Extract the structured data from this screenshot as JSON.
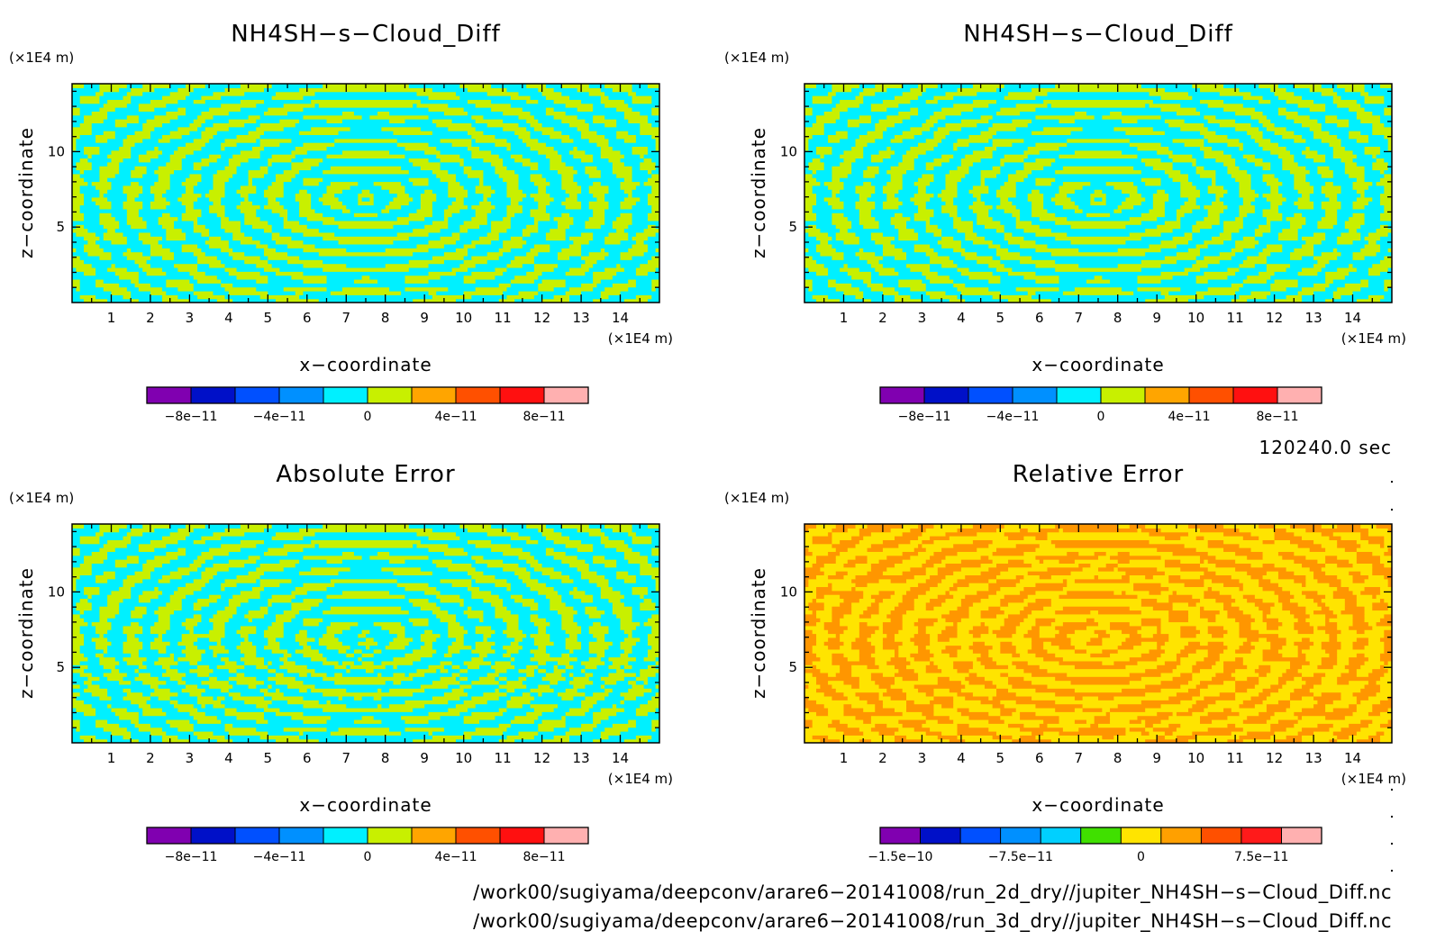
{
  "palette": {
    "cyan": "#00f0ff",
    "yellow_green": "#c8f000",
    "yellow": "#ffe400",
    "orange": "#ff9600"
  },
  "panels": [
    {
      "title": "NH4SH−s−Cloud_Diff",
      "xlabel": "x−coordinate",
      "ylabel": "z−coordinate",
      "x_unit": "(×1E4 m)",
      "y_unit": "(×1E4 m)",
      "pattern": "diff",
      "colors": [
        "#00f0ff",
        "#c8f000"
      ]
    },
    {
      "title": "NH4SH−s−Cloud_Diff",
      "xlabel": "x−coordinate",
      "ylabel": "z−coordinate",
      "x_unit": "(×1E4 m)",
      "y_unit": "(×1E4 m)",
      "pattern": "diff",
      "colors": [
        "#00f0ff",
        "#c8f000"
      ]
    },
    {
      "title": "Absolute Error",
      "xlabel": "x−coordinate",
      "ylabel": "z−coordinate",
      "x_unit": "(×1E4 m)",
      "y_unit": "(×1E4 m)",
      "pattern": "abs",
      "colors": [
        "#00f0ff",
        "#c8f000"
      ]
    },
    {
      "title": "Relative Error",
      "xlabel": "x−coordinate",
      "ylabel": "z−coordinate",
      "x_unit": "(×1E4 m)",
      "y_unit": "(×1E4 m)",
      "pattern": "rel",
      "colors": [
        "#ffe400",
        "#ff9600"
      ]
    }
  ],
  "time_label": "120240.0 sec",
  "footer_lines": [
    "/work00/sugiyama/deepconv/arare6−20141008/run_2d_dry//jupiter_NH4SH−s−Cloud_Diff.nc",
    "/work00/sugiyama/deepconv/arare6−20141008/run_3d_dry//jupiter_NH4SH−s−Cloud_Diff.nc"
  ],
  "chart_data": [
    {
      "type": "heatmap",
      "title": "NH4SH−s−Cloud_Diff",
      "xlabel": "x−coordinate",
      "ylabel": "z−coordinate",
      "x_unit": "(×1E4 m)",
      "y_unit": "(×1E4 m)",
      "xlim": [
        0,
        15
      ],
      "ylim": [
        0,
        14.5
      ],
      "x_ticks": [
        "1",
        "2",
        "3",
        "4",
        "5",
        "6",
        "7",
        "8",
        "9",
        "10",
        "11",
        "12",
        "13",
        "14"
      ],
      "y_ticks": [
        "5",
        "10"
      ],
      "levels_shown": [
        "0",
        "1e-11"
      ],
      "colorbar": {
        "colors": [
          "#8000b0",
          "#0010c8",
          "#0050ff",
          "#0090ff",
          "#00f0ff",
          "#c8f000",
          "#ffa500",
          "#ff5000",
          "#ff1010",
          "#ffb0b0"
        ],
        "labels": [
          "−8e−11",
          "−4e−11",
          "0",
          "4e−11",
          "8e−11"
        ],
        "label_pos": [
          1,
          3,
          5,
          7,
          9
        ]
      }
    },
    {
      "type": "heatmap",
      "title": "NH4SH−s−Cloud_Diff",
      "xlabel": "x−coordinate",
      "ylabel": "z−coordinate",
      "x_unit": "(×1E4 m)",
      "y_unit": "(×1E4 m)",
      "xlim": [
        0,
        15
      ],
      "ylim": [
        0,
        14.5
      ],
      "x_ticks": [
        "1",
        "2",
        "3",
        "4",
        "5",
        "6",
        "7",
        "8",
        "9",
        "10",
        "11",
        "12",
        "13",
        "14"
      ],
      "y_ticks": [
        "5",
        "10"
      ],
      "levels_shown": [
        "0",
        "1e-11"
      ],
      "colorbar": {
        "colors": [
          "#8000b0",
          "#0010c8",
          "#0050ff",
          "#0090ff",
          "#00f0ff",
          "#c8f000",
          "#ffa500",
          "#ff5000",
          "#ff1010",
          "#ffb0b0"
        ],
        "labels": [
          "−8e−11",
          "−4e−11",
          "0",
          "4e−11",
          "8e−11"
        ],
        "label_pos": [
          1,
          3,
          5,
          7,
          9
        ]
      }
    },
    {
      "type": "heatmap",
      "title": "Absolute Error",
      "xlabel": "x−coordinate",
      "ylabel": "z−coordinate",
      "x_unit": "(×1E4 m)",
      "y_unit": "(×1E4 m)",
      "xlim": [
        0,
        15
      ],
      "ylim": [
        0,
        14.5
      ],
      "x_ticks": [
        "1",
        "2",
        "3",
        "4",
        "5",
        "6",
        "7",
        "8",
        "9",
        "10",
        "11",
        "12",
        "13",
        "14"
      ],
      "y_ticks": [
        "5",
        "10"
      ],
      "levels_shown": [
        "0",
        "1e-11"
      ],
      "colorbar": {
        "colors": [
          "#8000b0",
          "#0010c8",
          "#0050ff",
          "#0090ff",
          "#00f0ff",
          "#c8f000",
          "#ffa500",
          "#ff5000",
          "#ff1010",
          "#ffb0b0"
        ],
        "labels": [
          "−8e−11",
          "−4e−11",
          "0",
          "4e−11",
          "8e−11"
        ],
        "label_pos": [
          1,
          3,
          5,
          7,
          9
        ]
      }
    },
    {
      "type": "heatmap",
      "title": "Relative Error",
      "xlabel": "x−coordinate",
      "ylabel": "z−coordinate",
      "x_unit": "(×1E4 m)",
      "y_unit": "(×1E4 m)",
      "xlim": [
        0,
        15
      ],
      "ylim": [
        0,
        14.5
      ],
      "x_ticks": [
        "1",
        "2",
        "3",
        "4",
        "5",
        "6",
        "7",
        "8",
        "9",
        "10",
        "11",
        "12",
        "13",
        "14"
      ],
      "y_ticks": [
        "5",
        "10"
      ],
      "levels_shown": [
        "0",
        "2.5e-11"
      ],
      "colorbar": {
        "colors": [
          "#8000b0",
          "#0010c8",
          "#0050ff",
          "#0090ff",
          "#00d0ff",
          "#40e000",
          "#ffe400",
          "#ffa000",
          "#ff5000",
          "#ff1a1a",
          "#ffb0b0"
        ],
        "labels": [
          "−1.5e−10",
          "−7.5e−11",
          "0",
          "7.5e−11"
        ],
        "label_pos": [
          0.5,
          3.5,
          6.5,
          9.5
        ]
      }
    }
  ]
}
